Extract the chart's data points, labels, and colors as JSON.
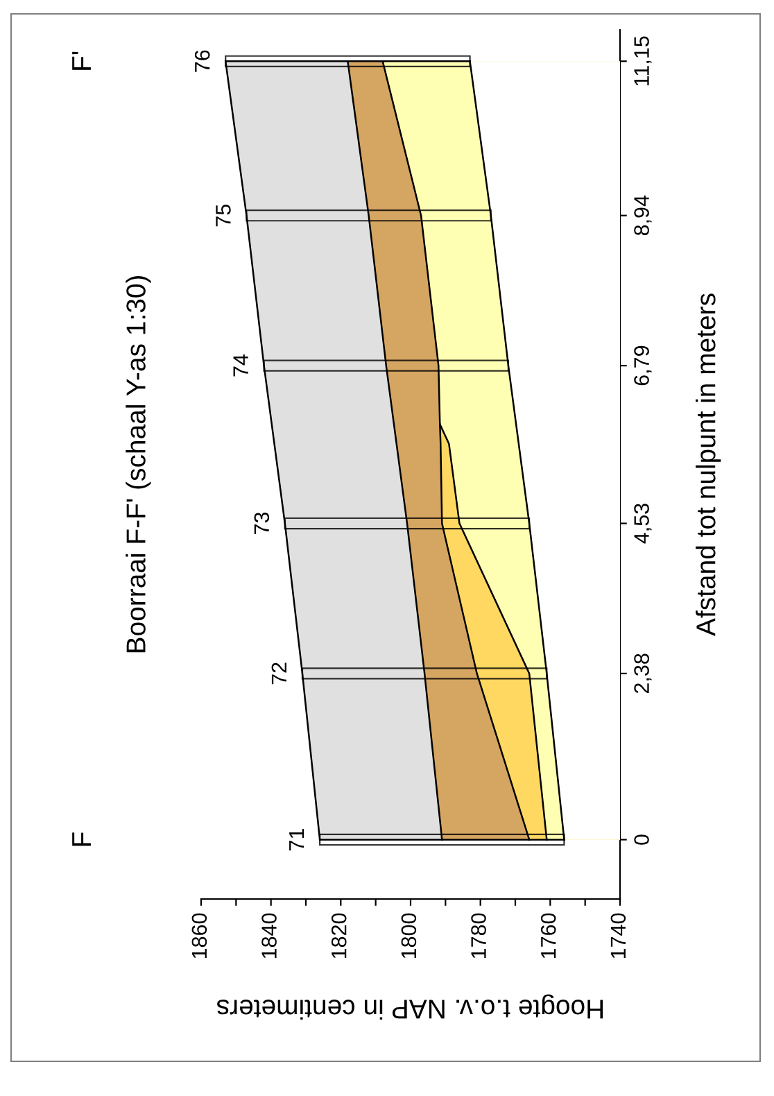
{
  "chart_data": {
    "type": "area",
    "orientation": "horizontal",
    "title": "Boorraai F-F' (schaal Y-as 1:30)",
    "xlabel": "Hoogte t.o.v. NAP in centimeters",
    "ylabel": "Afstand tot nulpunt in meters",
    "xlim": [
      1860,
      1740
    ],
    "xticks": [
      1740,
      {
        "value": 1750,
        "label": null
      },
      1760,
      {
        "value": 1770,
        "label": null
      },
      1780,
      {
        "value": 1790,
        "label": null
      },
      1800,
      {
        "value": 1810,
        "label": null
      },
      1820,
      {
        "value": 1830,
        "label": null
      },
      1840,
      {
        "value": 1850,
        "label": null
      },
      1860
    ],
    "ylim": [
      -0.85,
      11.6
    ],
    "yticks": [
      0,
      {
        "value": 2.38,
        "label": "2,38"
      },
      {
        "value": 4.53,
        "label": "4,53"
      },
      {
        "value": 6.79,
        "label": "6,79"
      },
      {
        "value": 8.94,
        "label": "8,94"
      },
      {
        "value": 11.15,
        "label": "11,15"
      }
    ],
    "series": [
      {
        "color": "#e0e0e0",
        "x": [
          0,
          2.38,
          4.53,
          6.79,
          8.94,
          11.15
        ],
        "values": [
          1826,
          1831,
          1836,
          1842,
          1847,
          1853
        ]
      },
      {
        "color": "#d5a562",
        "x": [
          0,
          2.38,
          4.53,
          6.79,
          8.94,
          11.15
        ],
        "values": [
          1791,
          1796,
          1801,
          1807,
          1812,
          1818
        ]
      },
      {
        "color": "#ffd862",
        "x": [
          0,
          2.38,
          4.53,
          5.67,
          5.95
        ],
        "values": [
          1766,
          1781,
          1791,
          1791.4,
          1791.6
        ]
      },
      {
        "color": "#ffffb4",
        "x": [
          0,
          2.38,
          4.53,
          5.67,
          5.95,
          6.79,
          8.94,
          11.15
        ],
        "values": [
          1761,
          1766,
          1786,
          1789,
          1791.6,
          1792,
          1797,
          1808
        ]
      },
      {
        "color": "#ffffff",
        "x": [
          0,
          2.38,
          4.53,
          6.79,
          8.94,
          11.15
        ],
        "values": [
          1756,
          1761,
          1766,
          1772,
          1777,
          1783
        ]
      },
      {
        "type": "bar",
        "color": "#000000",
        "x": [
          0,
          2.38,
          4.53,
          6.79,
          8.94,
          11.15
        ],
        "base": [
          1756,
          1761,
          1766,
          1772,
          1777,
          1783
        ],
        "values": [
          70,
          70,
          70,
          70,
          70,
          70
        ]
      }
    ],
    "annotations": [
      "F",
      "F'",
      "71",
      "72",
      "73",
      "74",
      "75",
      "76"
    ]
  }
}
